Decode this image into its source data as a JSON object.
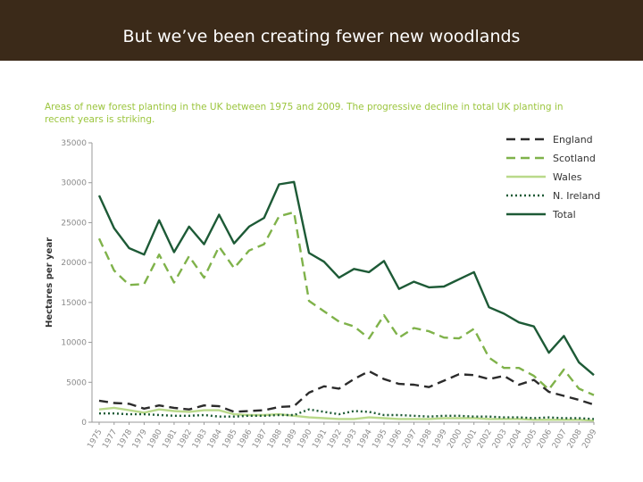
{
  "slide": {
    "title": "But we’ve been creating fewer new woodlands"
  },
  "colors": {
    "header_bg": "#3b2a19",
    "caption": "#9bc53d",
    "england": "#2b2b2b",
    "scotland": "#7fb24a",
    "wales": "#b9d98a",
    "nireland": "#1d5a36",
    "total": "#1d5a36"
  },
  "chart_data": {
    "type": "line",
    "title": "Areas of new forest planting in the UK between 1975 and 2009. The progressive decline in total UK planting in recent years is striking.",
    "xlabel": "",
    "ylabel": "Hectares per year",
    "ylim": [
      0,
      35000
    ],
    "yticks": [
      "0",
      "5000",
      "10000",
      "15000",
      "20000",
      "25000",
      "30000",
      "35000"
    ],
    "categories": [
      "1975",
      "1977",
      "1978",
      "1979",
      "1980",
      "1981",
      "1982",
      "1983",
      "1984",
      "1985",
      "1986",
      "1987",
      "1988",
      "1989",
      "1990",
      "1991",
      "1992",
      "1993",
      "1994",
      "1995",
      "1996",
      "1997",
      "1998",
      "1999",
      "2000",
      "2001",
      "2002",
      "2003",
      "2004",
      "2005",
      "2006",
      "2007",
      "2008",
      "2009"
    ],
    "legend_position": "top-right",
    "series": [
      {
        "name": "England",
        "style": "dashed",
        "color": "#2b2b2b",
        "values": [
          2700,
          2400,
          2300,
          1700,
          2100,
          1800,
          1600,
          2100,
          2000,
          1300,
          1400,
          1500,
          1900,
          2000,
          3700,
          4500,
          4200,
          5400,
          6400,
          5400,
          4800,
          4700,
          4400,
          5200,
          6000,
          5900,
          5400,
          5800,
          4700,
          5300,
          3800,
          3300,
          2800,
          2200
        ]
      },
      {
        "name": "Scotland",
        "style": "dashed",
        "color": "#7fb24a",
        "values": [
          23000,
          19000,
          17200,
          17300,
          21000,
          17500,
          20800,
          18100,
          22000,
          19300,
          21500,
          22300,
          25800,
          26300,
          15200,
          13900,
          12600,
          12000,
          10500,
          13400,
          10600,
          11800,
          11400,
          10600,
          10500,
          11700,
          8100,
          6800,
          6800,
          5800,
          4100,
          6600,
          4200,
          3400
        ]
      },
      {
        "name": "Wales",
        "style": "solid",
        "color": "#b9d98a",
        "values": [
          1600,
          1800,
          1500,
          1200,
          1600,
          1400,
          1300,
          1500,
          1500,
          1000,
          900,
          900,
          1000,
          800,
          600,
          500,
          400,
          400,
          600,
          500,
          400,
          400,
          400,
          500,
          500,
          500,
          400,
          400,
          400,
          300,
          300,
          300,
          300,
          200
        ]
      },
      {
        "name": "N. Ireland",
        "style": "dotted",
        "color": "#1d5a36",
        "values": [
          1100,
          1100,
          1000,
          1000,
          900,
          800,
          800,
          900,
          700,
          700,
          800,
          800,
          900,
          900,
          1600,
          1300,
          1000,
          1400,
          1300,
          900,
          900,
          800,
          700,
          800,
          800,
          700,
          700,
          600,
          600,
          500,
          600,
          500,
          500,
          400
        ]
      },
      {
        "name": "Total",
        "style": "solid",
        "color": "#1d5a36",
        "values": [
          28400,
          24300,
          21800,
          21000,
          25300,
          21300,
          24500,
          22300,
          26000,
          22400,
          24500,
          25600,
          29800,
          30100,
          21200,
          20100,
          18100,
          19200,
          18800,
          20200,
          16700,
          17600,
          16900,
          17000,
          17900,
          18800,
          14400,
          13600,
          12500,
          12000,
          8700,
          10800,
          7500,
          5900
        ]
      }
    ]
  }
}
